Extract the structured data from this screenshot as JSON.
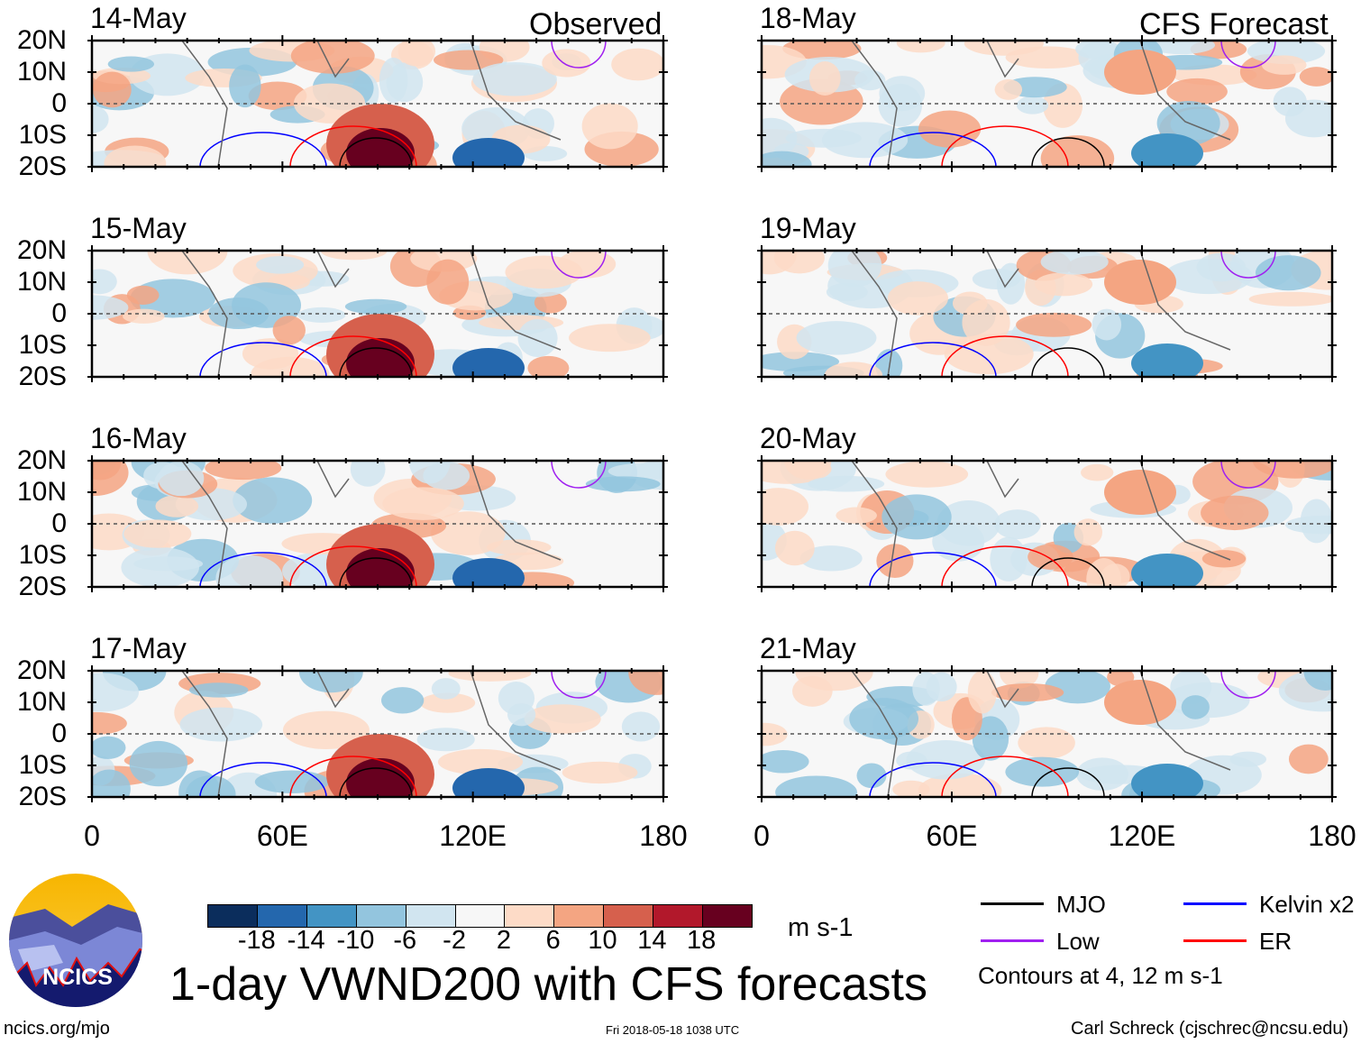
{
  "figure": {
    "title": "1-day VWND200 with CFS forecasts",
    "left_column_label": "Observed",
    "right_column_label": "CFS Forecast",
    "lat_ticks": [
      "20N",
      "10N",
      "0",
      "10S",
      "20S"
    ],
    "lon_ticks": [
      "0",
      "60E",
      "120E",
      "180"
    ],
    "left_dates": [
      "14-May",
      "15-May",
      "16-May",
      "17-May"
    ],
    "right_dates": [
      "18-May",
      "19-May",
      "20-May",
      "21-May"
    ]
  },
  "colorbar": {
    "unit": "m s-1",
    "labels": [
      "-18",
      "-14",
      "-10",
      "-6",
      "-2",
      "2",
      "6",
      "10",
      "14",
      "18"
    ],
    "colors": [
      "#0b2d5c",
      "#2467ad",
      "#4394c4",
      "#93c5de",
      "#d1e5f0",
      "#f7f7f7",
      "#fddbc7",
      "#f4a582",
      "#d6604d",
      "#b2182b",
      "#67001f"
    ]
  },
  "legend": {
    "items": [
      {
        "label": "MJO",
        "color": "#000000"
      },
      {
        "label": "Kelvin x2",
        "color": "#0000ff"
      },
      {
        "label": "Low",
        "color": "#a020f0"
      },
      {
        "label": "ER",
        "color": "#ff0000"
      }
    ],
    "note": "Contours at 4, 12 m s-1"
  },
  "footer": {
    "url": "ncics.org/mjo",
    "timestamp": "Fri 2018-05-18 1038 UTC",
    "credit": "Carl Schreck (cjschrec@ncsu.edu)",
    "logo_text": "NCICS"
  }
}
